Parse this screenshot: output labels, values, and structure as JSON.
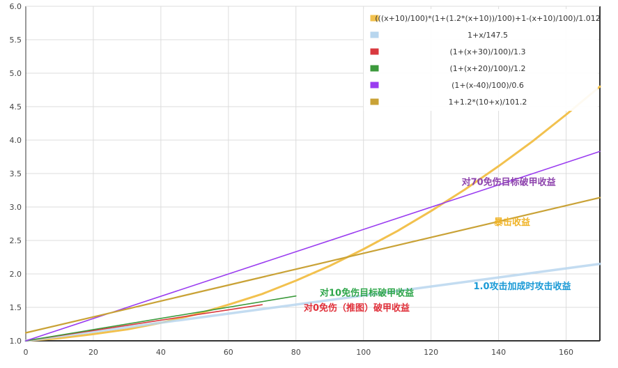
{
  "chart_data": {
    "type": "line",
    "title": "",
    "xlabel": "",
    "ylabel": "",
    "xlim": [
      0,
      170
    ],
    "ylim": [
      1.0,
      6.0
    ],
    "x_ticks": [
      "0",
      "20",
      "40",
      "60",
      "80",
      "100",
      "120",
      "140",
      "160"
    ],
    "y_ticks": [
      "1.0",
      "1.5",
      "2.0",
      "2.5",
      "3.0",
      "3.5",
      "4.0",
      "4.5",
      "5.0",
      "5.5",
      "6.0"
    ],
    "grid": true,
    "legend_position": "top-right",
    "series": [
      {
        "name": "(((x+10)/100)*(1+(1.2*(x+10))/100)+1-(x+10)/100)/1.012",
        "color": "#f2c14e",
        "x": [
          0,
          10,
          20,
          30,
          40,
          50,
          60,
          70,
          80,
          90,
          100,
          110,
          120,
          130,
          140,
          150,
          160,
          170
        ],
        "y": [
          1.0,
          1.04,
          1.1,
          1.17,
          1.27,
          1.39,
          1.54,
          1.7,
          1.9,
          2.12,
          2.37,
          2.64,
          2.94,
          3.26,
          3.61,
          3.98,
          4.38,
          4.8
        ]
      },
      {
        "name": "1+x/147.5",
        "color": "#b8d6ee",
        "x": [
          0,
          170
        ],
        "y": [
          1.0,
          2.15
        ]
      },
      {
        "name": "(1+(x+30)/100)/1.3",
        "color": "#d9393f",
        "x": [
          0,
          70
        ],
        "y": [
          1.0,
          1.54
        ]
      },
      {
        "name": "(1+(x+20)/100)/1.2",
        "color": "#3c9a3c",
        "x": [
          0,
          80
        ],
        "y": [
          1.0,
          1.67
        ]
      },
      {
        "name": "(1+(x-40)/100)/0.6",
        "color": "#9a3cf0",
        "x": [
          0,
          170
        ],
        "y": [
          1.0,
          3.83
        ]
      },
      {
        "name": "1+1.2*(10+x)/101.2",
        "color": "#c9a236",
        "x": [
          0,
          170
        ],
        "y": [
          1.12,
          3.14
        ]
      }
    ],
    "annotations": [
      {
        "text": "对70免伤目标破甲收益",
        "x": 143,
        "y": 3.33,
        "color": "#8e44ad"
      },
      {
        "text": "暴击收益",
        "x": 144,
        "y": 2.73,
        "color": "#f0b429"
      },
      {
        "text": "1.0攻击加成时攻击收益",
        "x": 147,
        "y": 1.77,
        "color": "#1a9ad6"
      },
      {
        "text": "对10免伤目标破甲收益",
        "x": 101,
        "y": 1.67,
        "color": "#2ea64a"
      },
      {
        "text": "对0免伤（推图）破甲收益",
        "x": 98,
        "y": 1.45,
        "color": "#e0303a"
      }
    ]
  }
}
